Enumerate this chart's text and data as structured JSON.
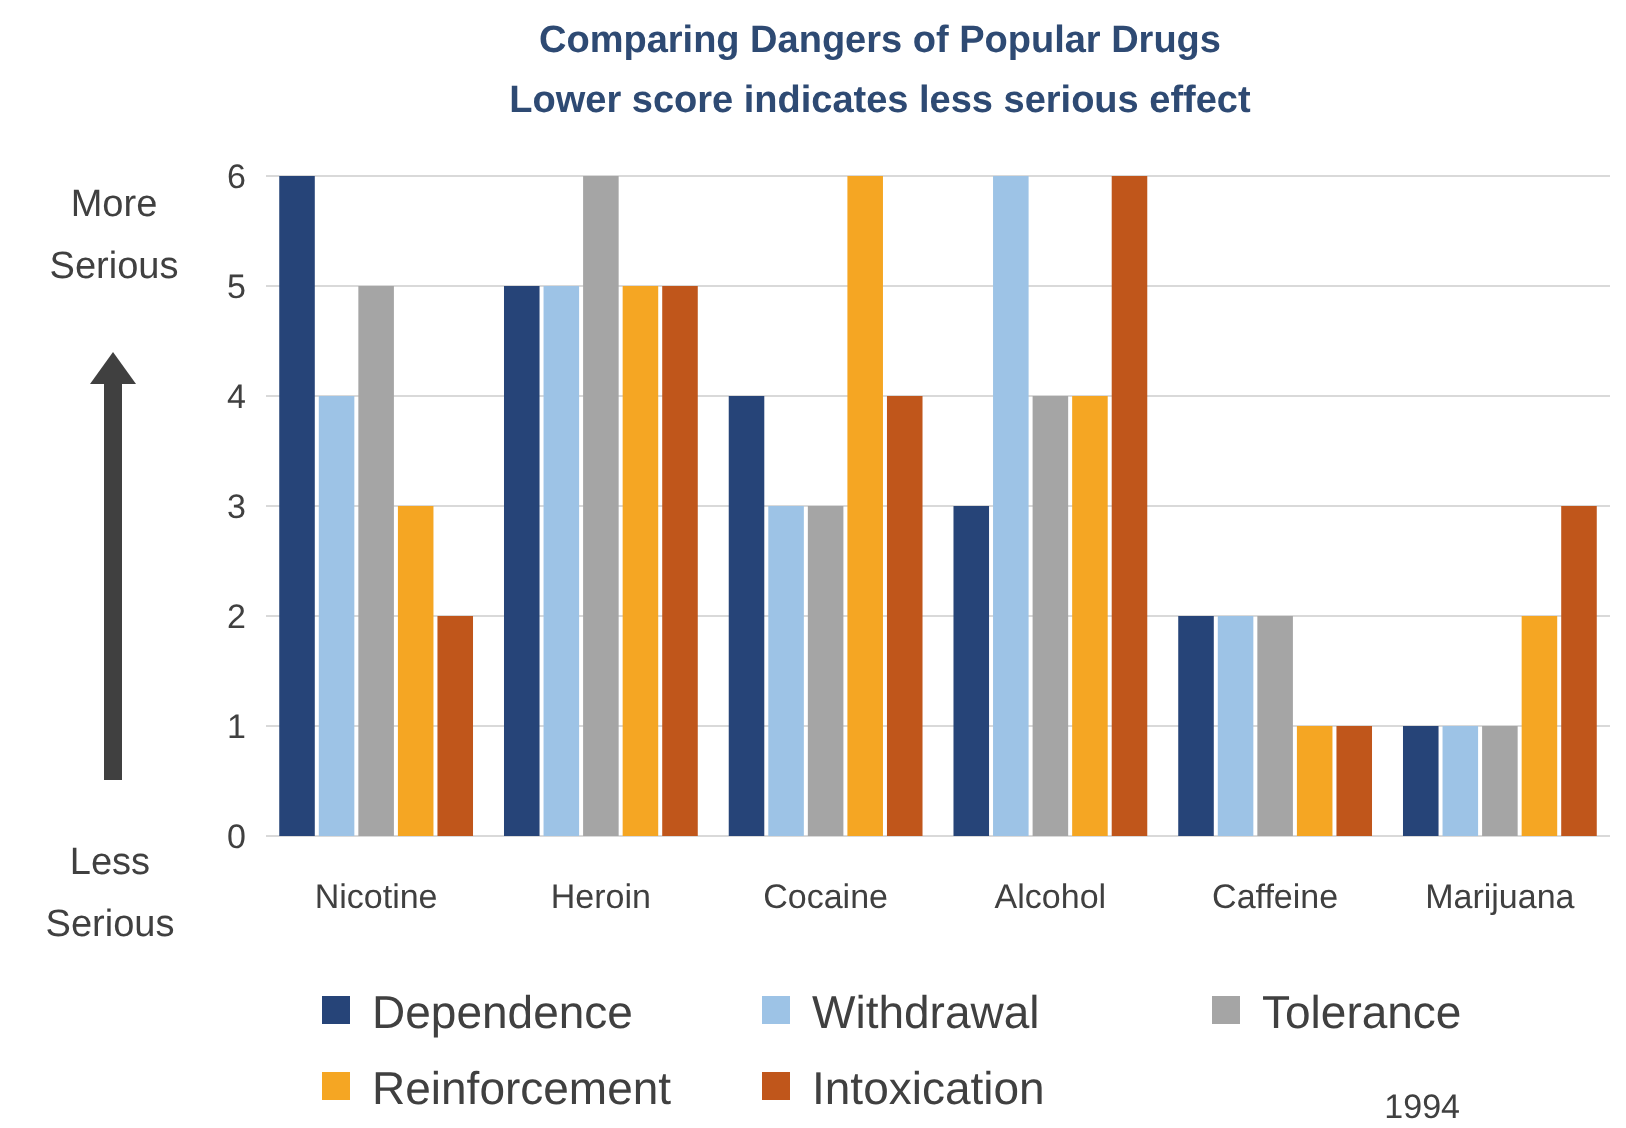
{
  "chart_data": {
    "type": "bar",
    "title": "Comparing Dangers of Popular Drugs",
    "subtitle": "Lower score indicates less serious effect",
    "categories": [
      "Nicotine",
      "Heroin",
      "Cocaine",
      "Alcohol",
      "Caffeine",
      "Marijuana"
    ],
    "series": [
      {
        "name": "Dependence",
        "color": "#264478",
        "values": [
          6,
          5,
          4,
          3,
          2,
          1
        ]
      },
      {
        "name": "Withdrawal",
        "color": "#9dc3e6",
        "values": [
          4,
          5,
          3,
          6,
          2,
          1
        ]
      },
      {
        "name": "Tolerance",
        "color": "#a5a5a5",
        "values": [
          5,
          6,
          3,
          4,
          2,
          1
        ]
      },
      {
        "name": "Reinforcement",
        "color": "#f5a623",
        "values": [
          3,
          5,
          6,
          4,
          1,
          2
        ]
      },
      {
        "name": "Intoxication",
        "color": "#c0561b",
        "values": [
          2,
          5,
          4,
          6,
          1,
          3
        ]
      }
    ],
    "ylim": [
      0,
      6
    ],
    "yticks": [
      0,
      1,
      2,
      3,
      4,
      5,
      6
    ],
    "grid": "y",
    "legend": "bottom",
    "annotations": [
      "More Serious",
      "Less Serious",
      "1994"
    ]
  }
}
